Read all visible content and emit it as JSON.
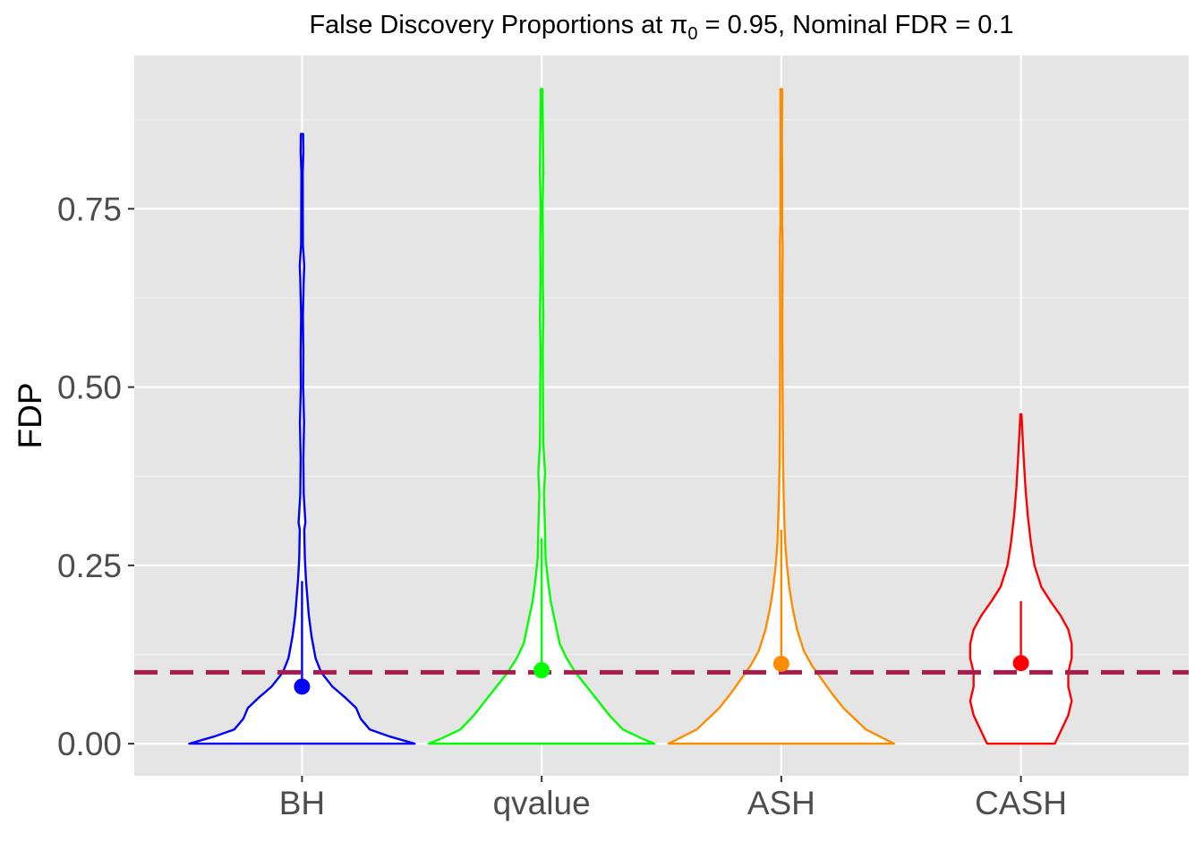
{
  "chart_data": {
    "type": "violin",
    "title": {
      "prefix": "False Discovery Proportions at ",
      "symbol": "π",
      "subscript": "0",
      "suffix": " = 0.95, Nominal FDR = 0.1"
    },
    "xlabel": "",
    "ylabel": "FDP",
    "ylim": [
      -0.045,
      0.965
    ],
    "yticks": [
      0,
      0.25,
      0.5,
      0.75
    ],
    "ytick_labels": [
      "0.00",
      "0.25",
      "0.50",
      "0.75"
    ],
    "categories": [
      "BH",
      "qvalue",
      "ASH",
      "CASH"
    ],
    "reference_line": {
      "y": 0.1,
      "color": "#a51c4c",
      "style": "dashed"
    },
    "series": [
      {
        "category": "BH",
        "color": "#0000ff",
        "max": 0.855,
        "whisker": [
          0.08,
          0.228
        ],
        "mean": 0.08,
        "density": [
          [
            0.0,
            1.0
          ],
          [
            0.01,
            0.78
          ],
          [
            0.02,
            0.6
          ],
          [
            0.035,
            0.52
          ],
          [
            0.05,
            0.48
          ],
          [
            0.065,
            0.38
          ],
          [
            0.08,
            0.27
          ],
          [
            0.1,
            0.17
          ],
          [
            0.12,
            0.12
          ],
          [
            0.15,
            0.085
          ],
          [
            0.18,
            0.06
          ],
          [
            0.2,
            0.05
          ],
          [
            0.23,
            0.035
          ],
          [
            0.26,
            0.025
          ],
          [
            0.3,
            0.02
          ],
          [
            0.31,
            0.03
          ],
          [
            0.35,
            0.015
          ],
          [
            0.4,
            0.012
          ],
          [
            0.45,
            0.018
          ],
          [
            0.5,
            0.01
          ],
          [
            0.55,
            0.012
          ],
          [
            0.6,
            0.008
          ],
          [
            0.65,
            0.015
          ],
          [
            0.67,
            0.02
          ],
          [
            0.7,
            0.008
          ],
          [
            0.8,
            0.006
          ],
          [
            0.83,
            0.012
          ],
          [
            0.855,
            0.01
          ]
        ]
      },
      {
        "category": "qvalue",
        "color": "#00ff00",
        "max": 0.918,
        "whisker": [
          0.103,
          0.288
        ],
        "mean": 0.103,
        "density": [
          [
            0.0,
            1.0
          ],
          [
            0.008,
            0.88
          ],
          [
            0.02,
            0.72
          ],
          [
            0.04,
            0.6
          ],
          [
            0.06,
            0.5
          ],
          [
            0.08,
            0.4
          ],
          [
            0.1,
            0.3
          ],
          [
            0.12,
            0.22
          ],
          [
            0.14,
            0.16
          ],
          [
            0.17,
            0.12
          ],
          [
            0.2,
            0.08
          ],
          [
            0.23,
            0.055
          ],
          [
            0.26,
            0.035
          ],
          [
            0.3,
            0.03
          ],
          [
            0.35,
            0.02
          ],
          [
            0.38,
            0.03
          ],
          [
            0.42,
            0.015
          ],
          [
            0.5,
            0.012
          ],
          [
            0.55,
            0.01
          ],
          [
            0.6,
            0.015
          ],
          [
            0.65,
            0.01
          ],
          [
            0.7,
            0.012
          ],
          [
            0.75,
            0.008
          ],
          [
            0.8,
            0.015
          ],
          [
            0.85,
            0.012
          ],
          [
            0.9,
            0.008
          ],
          [
            0.918,
            0.008
          ]
        ]
      },
      {
        "category": "ASH",
        "color": "#ff8c00",
        "max": 0.918,
        "whisker": [
          0.112,
          0.3
        ],
        "mean": 0.112,
        "density": [
          [
            0.0,
            1.0
          ],
          [
            0.008,
            0.9
          ],
          [
            0.02,
            0.75
          ],
          [
            0.035,
            0.65
          ],
          [
            0.05,
            0.55
          ],
          [
            0.07,
            0.45
          ],
          [
            0.09,
            0.36
          ],
          [
            0.11,
            0.27
          ],
          [
            0.13,
            0.2
          ],
          [
            0.16,
            0.14
          ],
          [
            0.19,
            0.1
          ],
          [
            0.22,
            0.07
          ],
          [
            0.25,
            0.05
          ],
          [
            0.28,
            0.035
          ],
          [
            0.3,
            0.03
          ],
          [
            0.35,
            0.02
          ],
          [
            0.4,
            0.015
          ],
          [
            0.48,
            0.012
          ],
          [
            0.55,
            0.01
          ],
          [
            0.62,
            0.01
          ],
          [
            0.7,
            0.012
          ],
          [
            0.73,
            0.008
          ],
          [
            0.8,
            0.008
          ],
          [
            0.85,
            0.006
          ],
          [
            0.9,
            0.008
          ],
          [
            0.918,
            0.008
          ]
        ]
      },
      {
        "category": "CASH",
        "color": "#ff0000",
        "max": 0.462,
        "whisker": [
          0.113,
          0.2
        ],
        "mean": 0.113,
        "density": [
          [
            0.0,
            0.3
          ],
          [
            0.02,
            0.36
          ],
          [
            0.04,
            0.42
          ],
          [
            0.06,
            0.45
          ],
          [
            0.08,
            0.42
          ],
          [
            0.1,
            0.42
          ],
          [
            0.12,
            0.45
          ],
          [
            0.14,
            0.45
          ],
          [
            0.16,
            0.42
          ],
          [
            0.18,
            0.35
          ],
          [
            0.2,
            0.26
          ],
          [
            0.22,
            0.18
          ],
          [
            0.25,
            0.12
          ],
          [
            0.28,
            0.09
          ],
          [
            0.32,
            0.06
          ],
          [
            0.36,
            0.04
          ],
          [
            0.4,
            0.025
          ],
          [
            0.44,
            0.012
          ],
          [
            0.462,
            0.005
          ]
        ]
      }
    ]
  }
}
